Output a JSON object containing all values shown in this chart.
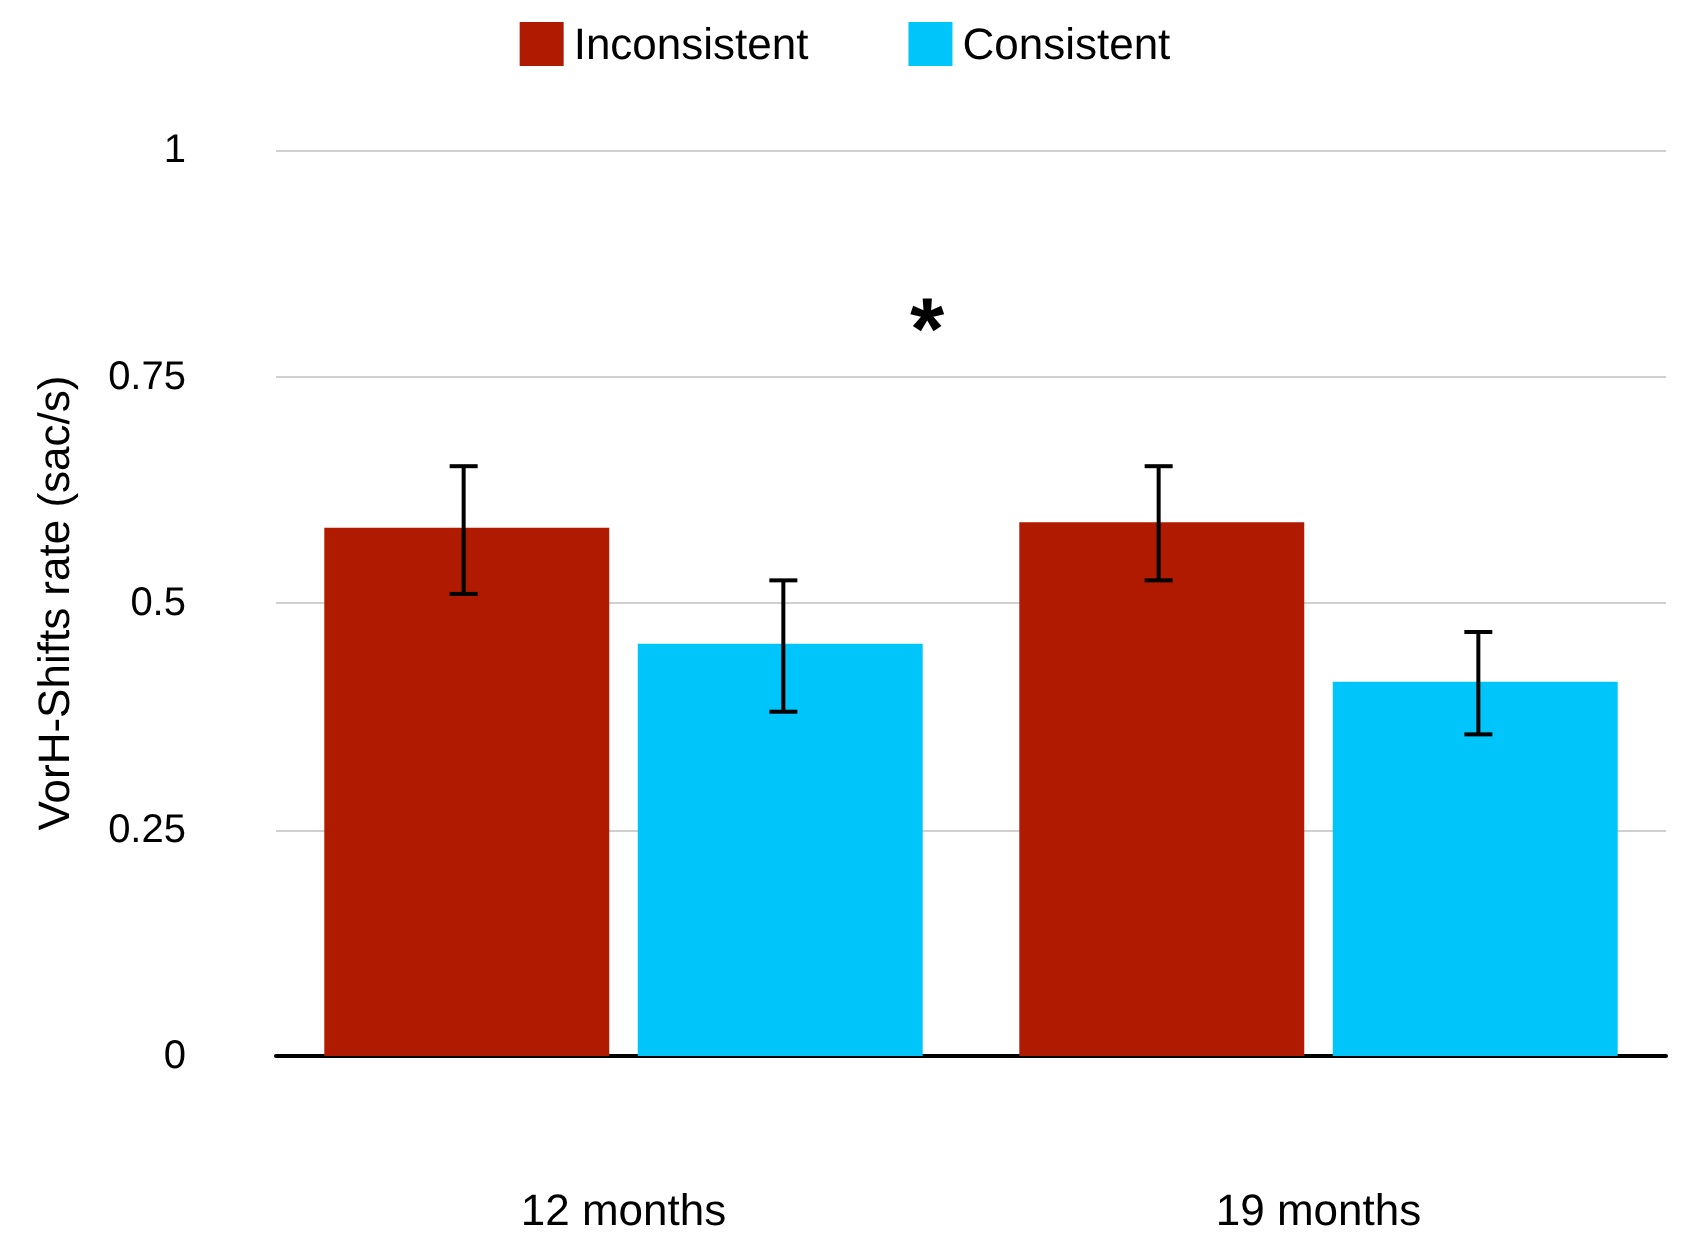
{
  "chart_data": {
    "type": "bar",
    "ylabel": "VorH-Shifts rate (sac/s)",
    "categories": [
      "12 months",
      "19 months"
    ],
    "series": [
      {
        "name": "Inconsistent",
        "color": "#b01a00",
        "values": [
          0.583,
          0.589
        ],
        "errors": [
          [
            0.51,
            0.651
          ],
          [
            0.525,
            0.651
          ]
        ]
      },
      {
        "name": "Consistent",
        "color": "#00c5fa",
        "values": [
          0.455,
          0.413
        ],
        "errors": [
          [
            0.38,
            0.525
          ],
          [
            0.355,
            0.468
          ]
        ]
      }
    ],
    "ylim": [
      0,
      1
    ],
    "yticks": [
      0,
      0.25,
      0.5,
      0.75,
      1
    ],
    "grid": "y",
    "legend": "top",
    "annotations": [
      "*"
    ]
  }
}
